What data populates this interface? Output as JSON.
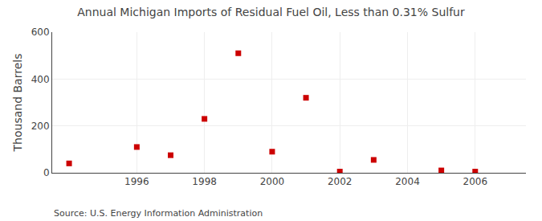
{
  "chart_data": {
    "type": "scatter",
    "title": "Annual Michigan Imports of Residual Fuel Oil, Less than 0.31% Sulfur",
    "ylabel": "Thousand Barrels",
    "annotations": [
      "Source: U.S. Energy Information Administration"
    ],
    "x": [
      1994,
      1996,
      1997,
      1998,
      1999,
      2000,
      2001,
      2002,
      2003,
      2005,
      2006
    ],
    "values": [
      40,
      110,
      75,
      230,
      510,
      90,
      320,
      5,
      55,
      10,
      5
    ],
    "color": "#cc0000",
    "marker": "square",
    "xlim": [
      1993.5,
      2007.5
    ],
    "xticks": [
      1996,
      1998,
      2000,
      2002,
      2004,
      2006
    ],
    "ylim": [
      0,
      600
    ],
    "yticks": [
      0,
      200,
      400,
      600
    ],
    "grid": true
  }
}
